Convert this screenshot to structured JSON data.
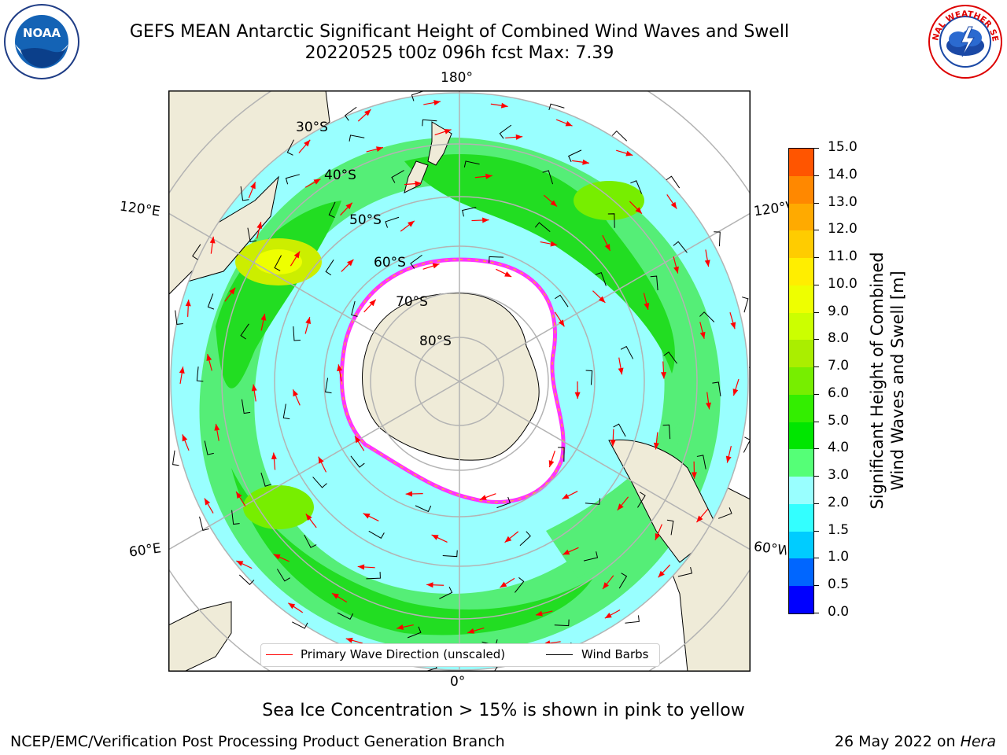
{
  "title": {
    "line1": "GEFS MEAN Antarctic Significant Height of Combined Wind Waves and Swell",
    "line2": "20220525 t00z 096h fcst   Max: 7.39"
  },
  "logos": {
    "noaa": "NOAA",
    "noaa_ring": "NATIONAL OCEANIC AND ATMOSPHERIC ADMINISTRATION · U.S. DEPARTMENT OF COMMERCE",
    "nws_ring": "NATIONAL WEATHER SERVICE"
  },
  "map": {
    "projection": "south-polar-stereographic",
    "longitude_labels": {
      "top": "180°",
      "bottom": "0°",
      "upper_left": "120°E",
      "upper_right": "120°W",
      "lower_left": "60°E",
      "lower_right": "60°W"
    },
    "latitude_labels": [
      "30°S",
      "40°S",
      "50°S",
      "60°S",
      "70°S",
      "80°S"
    ],
    "field_colors": {
      "land": "#efebd8",
      "ice_sheet": "#ffffff",
      "sea_ice_edge": "#ff33ff",
      "wave_arrows": "#ff0000",
      "wind_barbs": "#000000"
    }
  },
  "legend": {
    "primary_wave": "Primary Wave Direction (unscaled)",
    "wind_barbs": "Wind Barbs",
    "primary_wave_color": "#ff0000",
    "wind_barbs_color": "#000000"
  },
  "colorbar": {
    "label_line1": "Significant Height of Combined",
    "label_line2": "Wind Waves and Swell [m]",
    "ticks": [
      "15.0",
      "14.0",
      "13.0",
      "12.0",
      "11.0",
      "10.0",
      "9.0",
      "8.0",
      "7.0",
      "6.0",
      "5.0",
      "4.0",
      "3.0",
      "2.0",
      "1.5",
      "1.0",
      "0.5",
      "0.0"
    ],
    "colors": [
      "#0000ff",
      "#0066ff",
      "#00ccff",
      "#33ffff",
      "#99ffff",
      "#55ff77",
      "#00e600",
      "#33ee00",
      "#77ee00",
      "#aaee00",
      "#ccff00",
      "#eeff00",
      "#ffee00",
      "#ffcc00",
      "#ffaa00",
      "#ff8800",
      "#ff5500",
      "#ff2200",
      "#ff0000"
    ]
  },
  "note": "Sea Ice Concentration > 15% is shown in pink to yellow",
  "footer": {
    "left": "NCEP/EMC/Verification Post Processing Product Generation Branch",
    "right_date": "26 May 2022 on ",
    "right_host": "Hera"
  }
}
